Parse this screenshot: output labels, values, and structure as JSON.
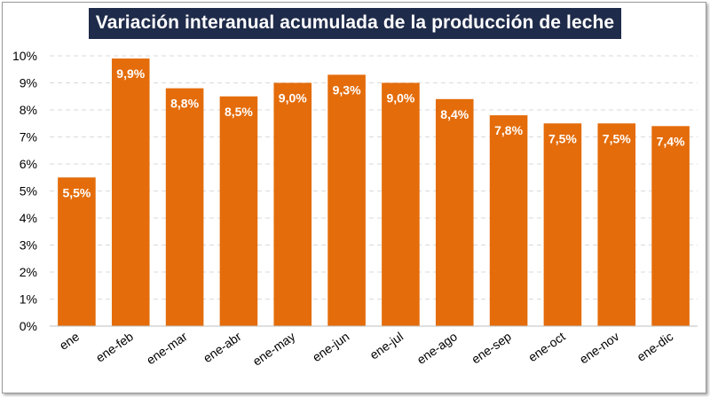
{
  "chart_data": {
    "type": "bar",
    "title": "Variación interanual acumulada de la producción de leche",
    "xlabel": "",
    "ylabel": "",
    "categories": [
      "ene",
      "ene-feb",
      "ene-mar",
      "ene-abr",
      "ene-may",
      "ene-jun",
      "ene-jul",
      "ene-ago",
      "ene-sep",
      "ene-oct",
      "ene-nov",
      "ene-dic"
    ],
    "values": [
      5.5,
      9.9,
      8.8,
      8.5,
      9.0,
      9.3,
      9.0,
      8.4,
      7.8,
      7.5,
      7.5,
      7.4
    ],
    "data_labels": [
      "5,5%",
      "9,9%",
      "8,8%",
      "8,5%",
      "9,0%",
      "9,3%",
      "9,0%",
      "8,4%",
      "7,8%",
      "7,5%",
      "7,5%",
      "7,4%"
    ],
    "ylim": [
      0,
      10
    ],
    "yticks": [
      "0%",
      "1%",
      "2%",
      "3%",
      "4%",
      "5%",
      "6%",
      "7%",
      "8%",
      "9%",
      "10%"
    ],
    "grid": true,
    "legend": "none",
    "colors": {
      "bar": "#e46c0a",
      "title_background": "#1f2b4a",
      "title_text": "#ffffff",
      "grid": "#d9d9d9",
      "data_label": "#ffffff"
    }
  }
}
